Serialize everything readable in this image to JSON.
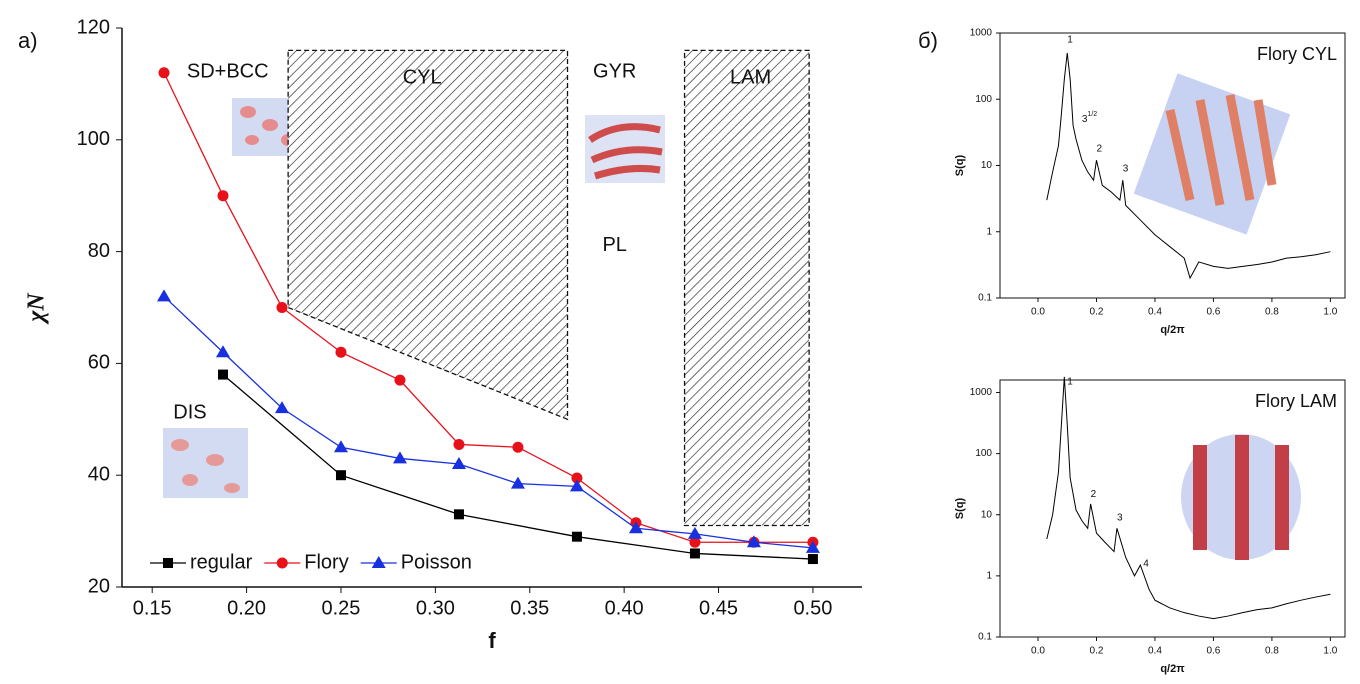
{
  "chart_data": [
    {
      "type": "line",
      "panel_label": "a)",
      "xlabel": "f",
      "ylabel": "χN",
      "xlim": [
        0.134,
        0.526
      ],
      "ylim": [
        20,
        120
      ],
      "xticks": [
        0.15,
        {
          "value": 0.2,
          "label": "0.20"
        },
        0.25,
        {
          "value": 0.3,
          "label": "0.30"
        },
        0.35,
        {
          "value": 0.4,
          "label": "0.40"
        },
        0.45,
        {
          "value": 0.5,
          "label": "0.50"
        }
      ],
      "yticks": [
        20,
        40,
        60,
        80,
        100,
        120
      ],
      "legend": "lower left",
      "series": [
        {
          "name": "regular",
          "color": "#000000",
          "marker": "square",
          "x": [
            0.1875,
            0.25,
            0.3125,
            0.375,
            0.4375,
            0.5
          ],
          "values": [
            58,
            40,
            33,
            29,
            26,
            25
          ]
        },
        {
          "name": "Flory",
          "color": "#e8111a",
          "marker": "circle",
          "x": [
            0.15625,
            0.1875,
            0.21875,
            0.25,
            0.28125,
            0.3125,
            0.34375,
            0.375,
            0.40625,
            0.4375,
            0.46875,
            0.5
          ],
          "values": [
            112,
            90,
            70,
            62,
            57,
            45.5,
            45,
            39.5,
            31.5,
            28,
            28,
            28
          ]
        },
        {
          "name": "Poisson",
          "color": "#1830e0",
          "marker": "triangle",
          "x": [
            0.15625,
            0.1875,
            0.21875,
            0.25,
            0.28125,
            0.3125,
            0.34375,
            0.375,
            0.40625,
            0.4375,
            0.46875,
            0.5
          ],
          "values": [
            72,
            62,
            52,
            45,
            43,
            42,
            38.5,
            38,
            30.5,
            29.5,
            28,
            27
          ]
        }
      ],
      "regions": [
        {
          "points": [
            [
              0.222,
              116
            ],
            [
              0.37,
              116
            ],
            [
              0.37,
              50
            ],
            [
              0.222,
              70
            ]
          ]
        },
        {
          "points": [
            [
              0.432,
              116
            ],
            [
              0.498,
              116
            ],
            [
              0.498,
              31
            ],
            [
              0.432,
              31
            ]
          ]
        }
      ],
      "annotations": [
        {
          "text": "SD+BCC",
          "x": 0.19,
          "y": 112
        },
        {
          "text": "CYL",
          "x": 0.293,
          "y": 111
        },
        {
          "text": "GYR",
          "x": 0.395,
          "y": 112
        },
        {
          "text": "LAM",
          "x": 0.467,
          "y": 111
        },
        {
          "text": "PL",
          "x": 0.395,
          "y": 81
        },
        {
          "text": "DIS",
          "x": 0.17,
          "y": 51
        }
      ]
    },
    {
      "type": "line",
      "panel_label": "б)",
      "title": "Flory CYL",
      "xlabel": "q/2π",
      "ylabel": "S(q)",
      "log_y": true,
      "xlim": [
        -0.13,
        1.05
      ],
      "ylim": [
        0.1,
        1000
      ],
      "xticks": [
        {
          "value": 0,
          "label": "0.0"
        },
        0.2,
        0.4,
        0.6,
        0.8,
        {
          "value": 1,
          "label": "1.0"
        }
      ],
      "yticks": [
        0.1,
        1,
        10,
        100,
        1000
      ],
      "color": "#000000",
      "x": [
        0.03,
        0.05,
        0.07,
        0.08,
        0.09,
        0.1,
        0.11,
        0.12,
        0.13,
        0.15,
        0.17,
        0.19,
        0.2,
        0.22,
        0.25,
        0.28,
        0.29,
        0.3,
        0.35,
        0.4,
        0.45,
        0.5,
        0.52,
        0.55,
        0.6,
        0.65,
        0.7,
        0.75,
        0.8,
        0.85,
        0.9,
        0.95,
        1.0
      ],
      "values": [
        3,
        8,
        20,
        60,
        200,
        500,
        200,
        40,
        25,
        12,
        8,
        6,
        12,
        5,
        4,
        3,
        6,
        2.5,
        1.5,
        0.9,
        0.6,
        0.4,
        0.2,
        0.35,
        0.3,
        0.28,
        0.3,
        0.32,
        0.35,
        0.4,
        0.42,
        0.45,
        0.5
      ],
      "annotations": [
        {
          "text": "1",
          "x": 0.1,
          "y": 800
        },
        {
          "text": "3",
          "sup": "1/2",
          "x": 0.15,
          "y": 50
        },
        {
          "text": "2",
          "x": 0.2,
          "y": 18
        },
        {
          "text": "3",
          "x": 0.29,
          "y": 9
        }
      ]
    },
    {
      "type": "line",
      "title": "Flory LAM",
      "xlabel": "q/2π",
      "ylabel": "S(q)",
      "log_y": true,
      "xlim": [
        -0.13,
        1.05
      ],
      "ylim": [
        0.1,
        1600
      ],
      "xticks": [
        {
          "value": 0,
          "label": "0.0"
        },
        0.2,
        0.4,
        0.6,
        0.8,
        {
          "value": 1,
          "label": "1.0"
        }
      ],
      "yticks": [
        0.1,
        1,
        10,
        100,
        1000
      ],
      "color": "#000000",
      "x": [
        0.03,
        0.05,
        0.07,
        0.08,
        0.09,
        0.1,
        0.11,
        0.13,
        0.15,
        0.17,
        0.18,
        0.2,
        0.23,
        0.26,
        0.27,
        0.3,
        0.33,
        0.35,
        0.38,
        0.4,
        0.45,
        0.5,
        0.55,
        0.6,
        0.65,
        0.7,
        0.75,
        0.8,
        0.85,
        0.9,
        0.95,
        1.0
      ],
      "values": [
        4,
        10,
        50,
        300,
        1800,
        300,
        40,
        12,
        8,
        6,
        15,
        5,
        3.5,
        2.5,
        6,
        2,
        1,
        1.5,
        0.6,
        0.4,
        0.3,
        0.25,
        0.22,
        0.2,
        0.22,
        0.25,
        0.28,
        0.3,
        0.35,
        0.4,
        0.45,
        0.5
      ],
      "annotations": [
        {
          "text": "1",
          "x": 0.1,
          "y": 1500
        },
        {
          "text": "2",
          "x": 0.18,
          "y": 22
        },
        {
          "text": "3",
          "x": 0.27,
          "y": 9
        },
        {
          "text": "4",
          "x": 0.36,
          "y": 1.6
        }
      ]
    }
  ]
}
